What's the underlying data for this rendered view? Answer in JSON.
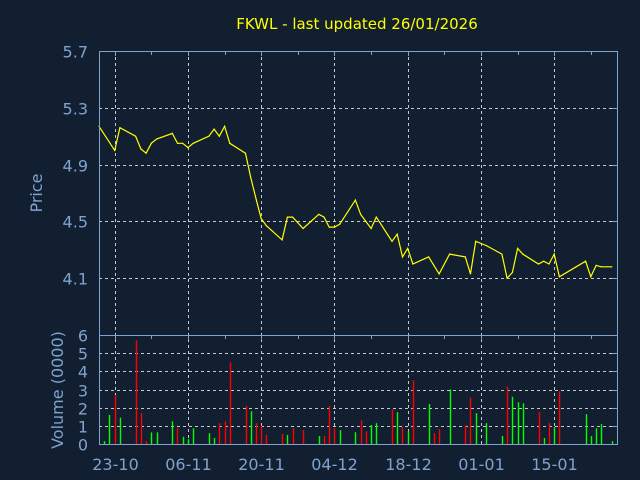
{
  "chart_data": [
    {
      "type": "line",
      "title": "FKWL - last updated 26/01/2026",
      "ylabel": "Price",
      "xlabel": "",
      "xlim": [
        "2025-10-20",
        "2026-01-27"
      ],
      "ylim": [
        3.7,
        5.7
      ],
      "yticks": [
        "5.7",
        "5.3",
        "4.9",
        "4.5",
        "4.1"
      ],
      "grid": true,
      "line_color": "#ffff00",
      "points": [
        [
          "2025-10-20",
          5.17
        ],
        [
          "2025-10-23",
          5.0
        ],
        [
          "2025-10-24",
          5.16
        ],
        [
          "2025-10-27",
          5.1
        ],
        [
          "2025-10-28",
          5.01
        ],
        [
          "2025-10-29",
          4.98
        ],
        [
          "2025-10-30",
          5.05
        ],
        [
          "2025-10-31",
          5.08
        ],
        [
          "2025-11-03",
          5.12
        ],
        [
          "2025-11-04",
          5.05
        ],
        [
          "2025-11-05",
          5.05
        ],
        [
          "2025-11-06",
          5.02
        ],
        [
          "2025-11-07",
          5.05
        ],
        [
          "2025-11-10",
          5.1
        ],
        [
          "2025-11-11",
          5.15
        ],
        [
          "2025-11-12",
          5.1
        ],
        [
          "2025-11-13",
          5.17
        ],
        [
          "2025-11-14",
          5.05
        ],
        [
          "2025-11-17",
          4.98
        ],
        [
          "2025-11-18",
          4.81
        ],
        [
          "2025-11-19",
          4.66
        ],
        [
          "2025-11-20",
          4.52
        ],
        [
          "2025-11-21",
          4.47
        ],
        [
          "2025-11-24",
          4.37
        ],
        [
          "2025-11-25",
          4.53
        ],
        [
          "2025-11-26",
          4.53
        ],
        [
          "2025-11-28",
          4.45
        ],
        [
          "2025-12-01",
          4.55
        ],
        [
          "2025-12-02",
          4.53
        ],
        [
          "2025-12-03",
          4.46
        ],
        [
          "2025-12-04",
          4.46
        ],
        [
          "2025-12-05",
          4.48
        ],
        [
          "2025-12-08",
          4.65
        ],
        [
          "2025-12-09",
          4.55
        ],
        [
          "2025-12-10",
          4.5
        ],
        [
          "2025-12-11",
          4.45
        ],
        [
          "2025-12-12",
          4.53
        ],
        [
          "2025-12-15",
          4.36
        ],
        [
          "2025-12-16",
          4.41
        ],
        [
          "2025-12-17",
          4.25
        ],
        [
          "2025-12-18",
          4.31
        ],
        [
          "2025-12-19",
          4.2
        ],
        [
          "2025-12-22",
          4.25
        ],
        [
          "2025-12-23",
          4.19
        ],
        [
          "2025-12-24",
          4.13
        ],
        [
          "2025-12-26",
          4.27
        ],
        [
          "2025-12-29",
          4.25
        ],
        [
          "2025-12-30",
          4.13
        ],
        [
          "2025-12-31",
          4.36
        ],
        [
          "2026-01-02",
          4.33
        ],
        [
          "2026-01-05",
          4.27
        ],
        [
          "2026-01-06",
          4.1
        ],
        [
          "2026-01-07",
          4.14
        ],
        [
          "2026-01-08",
          4.31
        ],
        [
          "2026-01-09",
          4.27
        ],
        [
          "2026-01-12",
          4.2
        ],
        [
          "2026-01-13",
          4.22
        ],
        [
          "2026-01-14",
          4.2
        ],
        [
          "2026-01-15",
          4.27
        ],
        [
          "2026-01-16",
          4.11
        ],
        [
          "2026-01-21",
          4.22
        ],
        [
          "2026-01-22",
          4.11
        ],
        [
          "2026-01-23",
          4.19
        ],
        [
          "2026-01-24",
          4.18
        ],
        [
          "2026-01-26",
          4.18
        ]
      ]
    },
    {
      "type": "bar",
      "ylabel": "Volume (0000)",
      "xlim": [
        "2025-10-20",
        "2026-01-27"
      ],
      "ylim": [
        0,
        6
      ],
      "yticks": [
        "0",
        "1",
        "2",
        "3",
        "4",
        "5",
        "6"
      ],
      "xticks": [
        {
          "date": "2025-10-23",
          "label": "23-10"
        },
        {
          "date": "2025-11-06",
          "label": "06-11"
        },
        {
          "date": "2025-11-20",
          "label": "20-11"
        },
        {
          "date": "2025-12-04",
          "label": "04-12"
        },
        {
          "date": "2025-12-18",
          "label": "18-12"
        },
        {
          "date": "2026-01-01",
          "label": "01-01"
        },
        {
          "date": "2026-01-15",
          "label": "15-01"
        }
      ],
      "grid": true,
      "colors": {
        "up": "#00ff00",
        "down": "#ff0000"
      },
      "bars": [
        [
          "2025-10-21",
          0.16,
          "up"
        ],
        [
          "2025-10-22",
          1.6,
          "up"
        ],
        [
          "2025-10-23",
          2.7,
          "down"
        ],
        [
          "2025-10-24",
          1.45,
          "up"
        ],
        [
          "2025-10-27",
          5.7,
          "down"
        ],
        [
          "2025-10-28",
          1.7,
          "down"
        ],
        [
          "2025-10-29",
          0.16,
          "down"
        ],
        [
          "2025-10-30",
          0.64,
          "up"
        ],
        [
          "2025-10-31",
          0.64,
          "up"
        ],
        [
          "2025-11-03",
          1.25,
          "up"
        ],
        [
          "2025-11-04",
          0.87,
          "down"
        ],
        [
          "2025-11-05",
          0.4,
          "up"
        ],
        [
          "2025-11-06",
          0.27,
          "up"
        ],
        [
          "2025-11-07",
          0.87,
          "up"
        ],
        [
          "2025-11-10",
          0.6,
          "up"
        ],
        [
          "2025-11-11",
          0.33,
          "up"
        ],
        [
          "2025-11-12",
          1.15,
          "down"
        ],
        [
          "2025-11-13",
          1.25,
          "down"
        ],
        [
          "2025-11-14",
          4.5,
          "down"
        ],
        [
          "2025-11-17",
          2.1,
          "down"
        ],
        [
          "2025-11-18",
          1.8,
          "up"
        ],
        [
          "2025-11-19",
          1.15,
          "down"
        ],
        [
          "2025-11-20",
          1.0,
          "down"
        ],
        [
          "2025-11-21",
          0.5,
          "down"
        ],
        [
          "2025-11-24",
          0.55,
          "down"
        ],
        [
          "2025-11-25",
          0.5,
          "up"
        ],
        [
          "2025-11-26",
          0.87,
          "down"
        ],
        [
          "2025-11-28",
          0.76,
          "down"
        ],
        [
          "2025-12-01",
          0.44,
          "up"
        ],
        [
          "2025-12-02",
          0.44,
          "down"
        ],
        [
          "2025-12-03",
          2.1,
          "down"
        ],
        [
          "2025-12-04",
          0.87,
          "down"
        ],
        [
          "2025-12-05",
          0.76,
          "up"
        ],
        [
          "2025-12-08",
          0.65,
          "up"
        ],
        [
          "2025-12-09",
          1.3,
          "down"
        ],
        [
          "2025-12-10",
          0.7,
          "down"
        ],
        [
          "2025-12-11",
          1.04,
          "up"
        ],
        [
          "2025-12-12",
          1.15,
          "up"
        ],
        [
          "2025-12-15",
          1.9,
          "down"
        ],
        [
          "2025-12-16",
          1.75,
          "up"
        ],
        [
          "2025-12-17",
          0.93,
          "down"
        ],
        [
          "2025-12-18",
          0.7,
          "up"
        ],
        [
          "2025-12-19",
          3.5,
          "down"
        ],
        [
          "2025-12-22",
          2.2,
          "up"
        ],
        [
          "2025-12-23",
          0.6,
          "down"
        ],
        [
          "2025-12-24",
          0.82,
          "down"
        ],
        [
          "2025-12-26",
          3.0,
          "up"
        ],
        [
          "2025-12-29",
          1.04,
          "down"
        ],
        [
          "2025-12-30",
          2.56,
          "down"
        ],
        [
          "2025-12-31",
          1.7,
          "up"
        ],
        [
          "2026-01-02",
          1.15,
          "up"
        ],
        [
          "2026-01-05",
          0.44,
          "up"
        ],
        [
          "2026-01-06",
          3.16,
          "down"
        ],
        [
          "2026-01-07",
          2.6,
          "up"
        ],
        [
          "2026-01-08",
          2.3,
          "up"
        ],
        [
          "2026-01-09",
          2.24,
          "up"
        ],
        [
          "2026-01-12",
          1.75,
          "down"
        ],
        [
          "2026-01-13",
          0.33,
          "up"
        ],
        [
          "2026-01-14",
          1.15,
          "down"
        ],
        [
          "2026-01-15",
          0.93,
          "up"
        ],
        [
          "2026-01-16",
          2.9,
          "down"
        ],
        [
          "2026-01-21",
          1.64,
          "up"
        ],
        [
          "2026-01-22",
          0.44,
          "up"
        ],
        [
          "2026-01-23",
          0.87,
          "up"
        ],
        [
          "2026-01-24",
          1.1,
          "up"
        ],
        [
          "2026-01-26",
          0.16,
          "up"
        ]
      ]
    }
  ],
  "colors": {
    "background": "#111f30",
    "axis": "#7fa3cf",
    "grid": "#c8c8c8",
    "title": "#ffff00"
  }
}
